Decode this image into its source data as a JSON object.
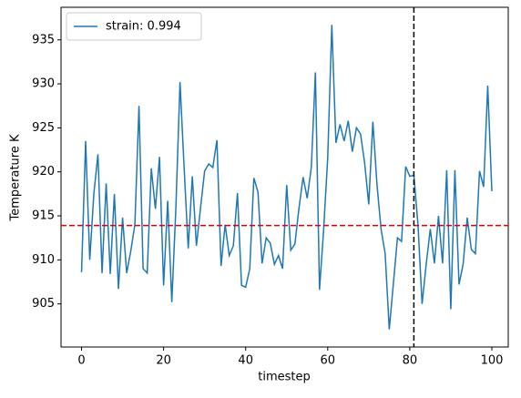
{
  "chart_data": {
    "type": "line",
    "x": [
      0,
      1,
      2,
      3,
      4,
      5,
      6,
      7,
      8,
      9,
      10,
      11,
      12,
      13,
      14,
      15,
      16,
      17,
      18,
      19,
      20,
      21,
      22,
      23,
      24,
      25,
      26,
      27,
      28,
      29,
      30,
      31,
      32,
      33,
      34,
      35,
      36,
      37,
      38,
      39,
      40,
      41,
      42,
      43,
      44,
      45,
      46,
      47,
      48,
      49,
      50,
      51,
      52,
      53,
      54,
      55,
      56,
      57,
      58,
      59,
      60,
      61,
      62,
      63,
      64,
      65,
      66,
      67,
      68,
      69,
      70,
      71,
      72,
      73,
      74,
      75,
      76,
      77,
      78,
      79,
      80,
      81,
      82,
      83,
      84,
      85,
      86,
      87,
      88,
      89,
      90,
      91,
      92,
      93,
      94,
      95,
      96,
      97,
      98,
      99,
      100
    ],
    "series": [
      {
        "name": "strain: 0.994",
        "color": "#1f77b4",
        "values": [
          908.6,
          923.5,
          910,
          917.5,
          922,
          908.5,
          918.7,
          908.4,
          917.5,
          906.7,
          914.8,
          908.5,
          911,
          914,
          927.5,
          909,
          908.5,
          920.4,
          915.8,
          921.7,
          907.1,
          916.7,
          905.2,
          916,
          930.2,
          920.5,
          911.3,
          919.5,
          911.6,
          915.9,
          920.1,
          920.9,
          920.5,
          923.6,
          909.3,
          914,
          910.5,
          911.6,
          917.6,
          907.1,
          906.9,
          909,
          919.3,
          917.7,
          909.6,
          912.5,
          911.9,
          909.5,
          910.5,
          909,
          918.5,
          911.1,
          911.8,
          915.9,
          919.4,
          917,
          920.5,
          931.3,
          906.6,
          913.4,
          921.6,
          936.7,
          923.3,
          925.4,
          923.5,
          925.8,
          922.3,
          925,
          924.3,
          921,
          916.3,
          925.7,
          918.6,
          913.5,
          910.7,
          902.1,
          907.3,
          912.5,
          912.1,
          920.6,
          919.5,
          919.6,
          914,
          905,
          909.5,
          913.5,
          909.6,
          915,
          909.6,
          920.2,
          904.4,
          920.2,
          907.2,
          909.5,
          914.8,
          911.2,
          910.7,
          920.1,
          918.3,
          929.8,
          917.8
        ]
      }
    ],
    "hline": {
      "value": 913.9,
      "color": "#e00000"
    },
    "vline": {
      "value": 81,
      "color": "#000000"
    },
    "xlabel": "timestep",
    "ylabel": "Temperature K",
    "xlim": [
      -5,
      104
    ],
    "ylim": [
      900.1,
      938.7
    ],
    "xticks": [
      0,
      20,
      40,
      60,
      80,
      100
    ],
    "yticks": [
      905,
      910,
      915,
      920,
      925,
      930,
      935
    ],
    "legend": "upper left"
  }
}
